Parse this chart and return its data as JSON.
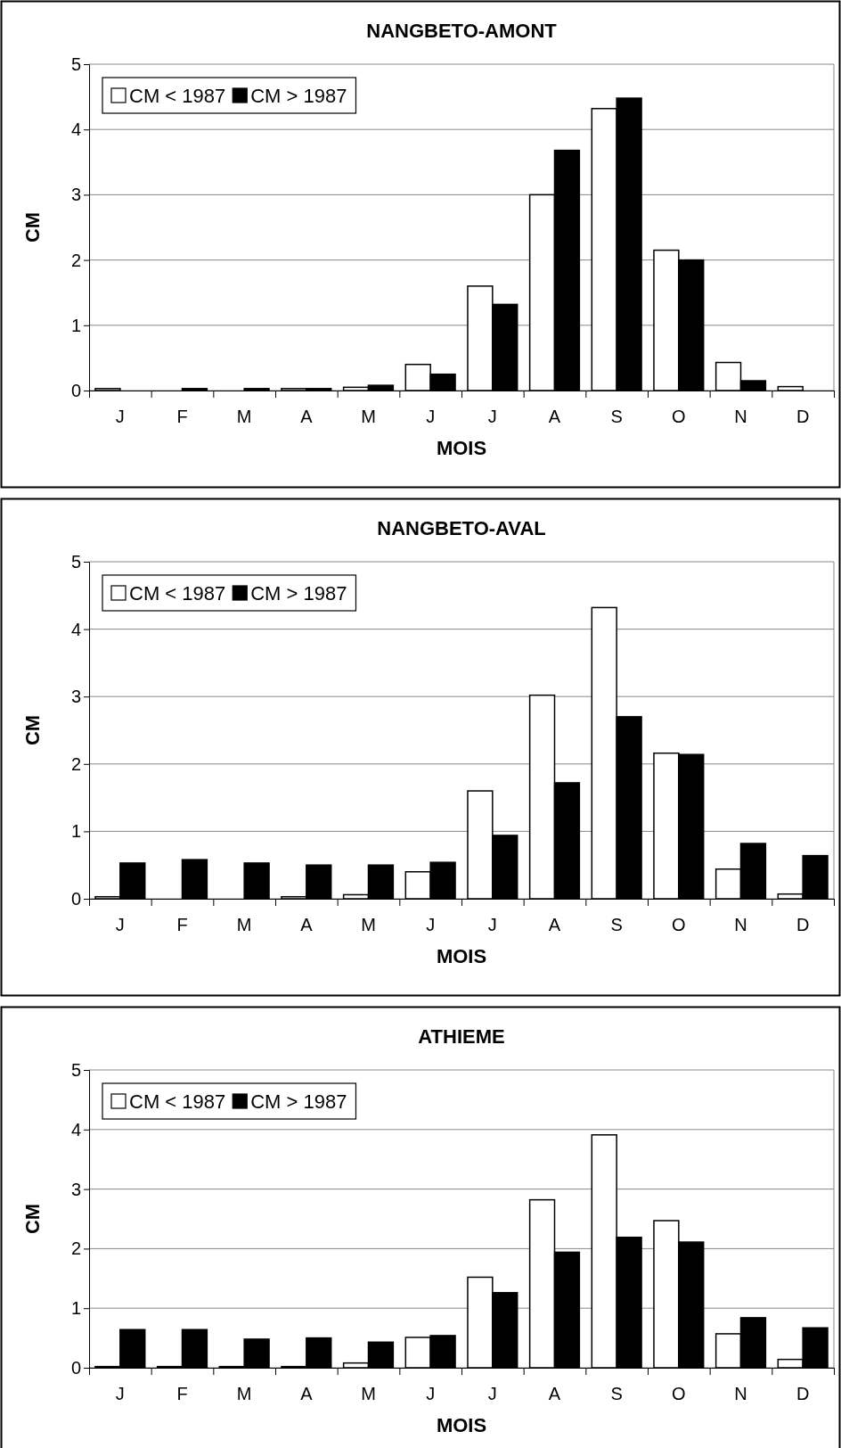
{
  "chart_data": [
    {
      "type": "bar",
      "title": "NANGBETO-AMONT",
      "xlabel": "MOIS",
      "ylabel": "CM",
      "categories": [
        "J",
        "F",
        "M",
        "A",
        "M",
        "J",
        "J",
        "A",
        "S",
        "O",
        "N",
        "D"
      ],
      "series": [
        {
          "name": "CM < 1987",
          "color": "#ffffff",
          "values": [
            0.03,
            0,
            0,
            0.03,
            0.05,
            0.4,
            1.6,
            3.0,
            4.32,
            2.15,
            0.43,
            0.06
          ]
        },
        {
          "name": "CM > 1987",
          "color": "#000000",
          "values": [
            0,
            0.03,
            0.03,
            0.03,
            0.08,
            0.25,
            1.32,
            3.68,
            4.48,
            2.0,
            0.15,
            0
          ]
        }
      ],
      "ylim": [
        0,
        5
      ],
      "yticks": [
        0,
        1,
        2,
        3,
        4,
        5
      ],
      "grid": "y",
      "legend": "top left"
    },
    {
      "type": "bar",
      "title": "NANGBETO-AVAL",
      "xlabel": "MOIS",
      "ylabel": "CM",
      "categories": [
        "J",
        "F",
        "M",
        "A",
        "M",
        "J",
        "J",
        "A",
        "S",
        "O",
        "N",
        "D"
      ],
      "series": [
        {
          "name": "CM < 1987",
          "color": "#ffffff",
          "values": [
            0.03,
            0,
            0,
            0.03,
            0.06,
            0.4,
            1.6,
            3.02,
            4.32,
            2.16,
            0.44,
            0.07
          ]
        },
        {
          "name": "CM > 1987",
          "color": "#000000",
          "values": [
            0.53,
            0.58,
            0.53,
            0.5,
            0.5,
            0.54,
            0.94,
            1.72,
            2.7,
            2.14,
            0.82,
            0.64
          ]
        }
      ],
      "ylim": [
        0,
        5
      ],
      "yticks": [
        0,
        1,
        2,
        3,
        4,
        5
      ],
      "grid": "y",
      "legend": "top left"
    },
    {
      "type": "bar",
      "title": "ATHIEME",
      "xlabel": "MOIS",
      "ylabel": "CM",
      "categories": [
        "J",
        "F",
        "M",
        "A",
        "M",
        "J",
        "J",
        "A",
        "S",
        "O",
        "N",
        "D"
      ],
      "series": [
        {
          "name": "CM < 1987",
          "color": "#ffffff",
          "values": [
            0.02,
            0.02,
            0.02,
            0.02,
            0.08,
            0.51,
            1.52,
            2.82,
            3.91,
            2.47,
            0.57,
            0.14
          ]
        },
        {
          "name": "CM > 1987",
          "color": "#000000",
          "values": [
            0.64,
            0.64,
            0.48,
            0.5,
            0.43,
            0.54,
            1.26,
            1.94,
            2.19,
            2.11,
            0.84,
            0.67
          ]
        }
      ],
      "ylim": [
        0,
        5
      ],
      "yticks": [
        0,
        1,
        2,
        3,
        4,
        5
      ],
      "grid": "y",
      "legend": "top left"
    }
  ]
}
